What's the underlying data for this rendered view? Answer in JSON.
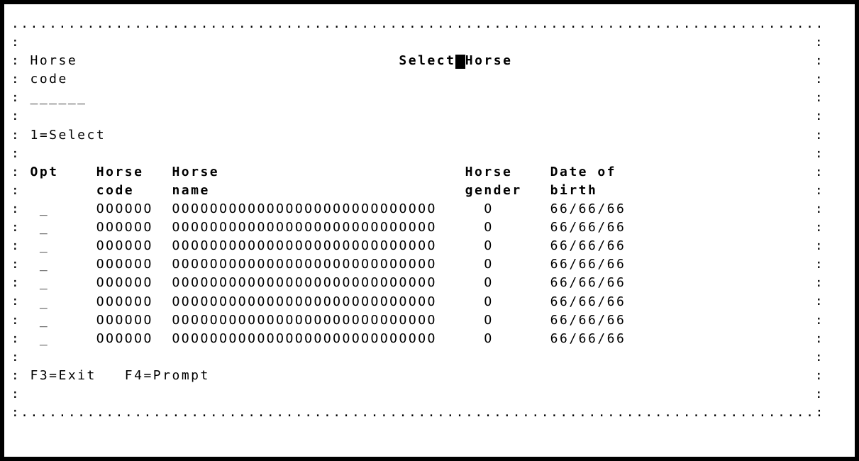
{
  "colors": {
    "foreground": "#000000",
    "background": "#ffffff"
  },
  "window": {
    "title": {
      "before_cursor": "Select",
      "cursor": " ",
      "after_cursor": "Horse"
    },
    "border": {
      "top": "......................................................................................",
      "left": ":\n:\n:\n:\n:\n:\n:\n:\n:\n:\n:\n:\n:\n:\n:\n:\n:\n:\n:\n:",
      "right": ":\n:\n:\n:\n:\n:\n:\n:\n:\n:\n:\n:\n:\n:\n:\n:\n:\n:\n:\n:",
      "bottom": ":....................................................................................:"
    }
  },
  "positioner": {
    "label_line1": "Horse",
    "label_line2": "code",
    "input_value": "______"
  },
  "options_legend": "1=Select",
  "table": {
    "headers": {
      "opt": "Opt",
      "code": [
        "Horse",
        "code"
      ],
      "name": [
        "Horse",
        "name"
      ],
      "gender": [
        "Horse",
        "gender"
      ],
      "birth": [
        "Date of",
        "birth"
      ]
    },
    "rows": [
      {
        "opt": "_",
        "code": "OOOOOO",
        "name": "OOOOOOOOOOOOOOOOOOOOOOOOOOOO",
        "gender": "O",
        "dob": "66/66/66"
      },
      {
        "opt": "_",
        "code": "OOOOOO",
        "name": "OOOOOOOOOOOOOOOOOOOOOOOOOOOO",
        "gender": "O",
        "dob": "66/66/66"
      },
      {
        "opt": "_",
        "code": "OOOOOO",
        "name": "OOOOOOOOOOOOOOOOOOOOOOOOOOOO",
        "gender": "O",
        "dob": "66/66/66"
      },
      {
        "opt": "_",
        "code": "OOOOOO",
        "name": "OOOOOOOOOOOOOOOOOOOOOOOOOOOO",
        "gender": "O",
        "dob": "66/66/66"
      },
      {
        "opt": "_",
        "code": "OOOOOO",
        "name": "OOOOOOOOOOOOOOOOOOOOOOOOOOOO",
        "gender": "O",
        "dob": "66/66/66"
      },
      {
        "opt": "_",
        "code": "OOOOOO",
        "name": "OOOOOOOOOOOOOOOOOOOOOOOOOOOO",
        "gender": "O",
        "dob": "66/66/66"
      },
      {
        "opt": "_",
        "code": "OOOOOO",
        "name": "OOOOOOOOOOOOOOOOOOOOOOOOOOOO",
        "gender": "O",
        "dob": "66/66/66"
      },
      {
        "opt": "_",
        "code": "OOOOOO",
        "name": "OOOOOOOOOOOOOOOOOOOOOOOOOOOO",
        "gender": "O",
        "dob": "66/66/66"
      }
    ]
  },
  "function_keys": {
    "f3": "F3=Exit",
    "f4": "F4=Prompt"
  }
}
